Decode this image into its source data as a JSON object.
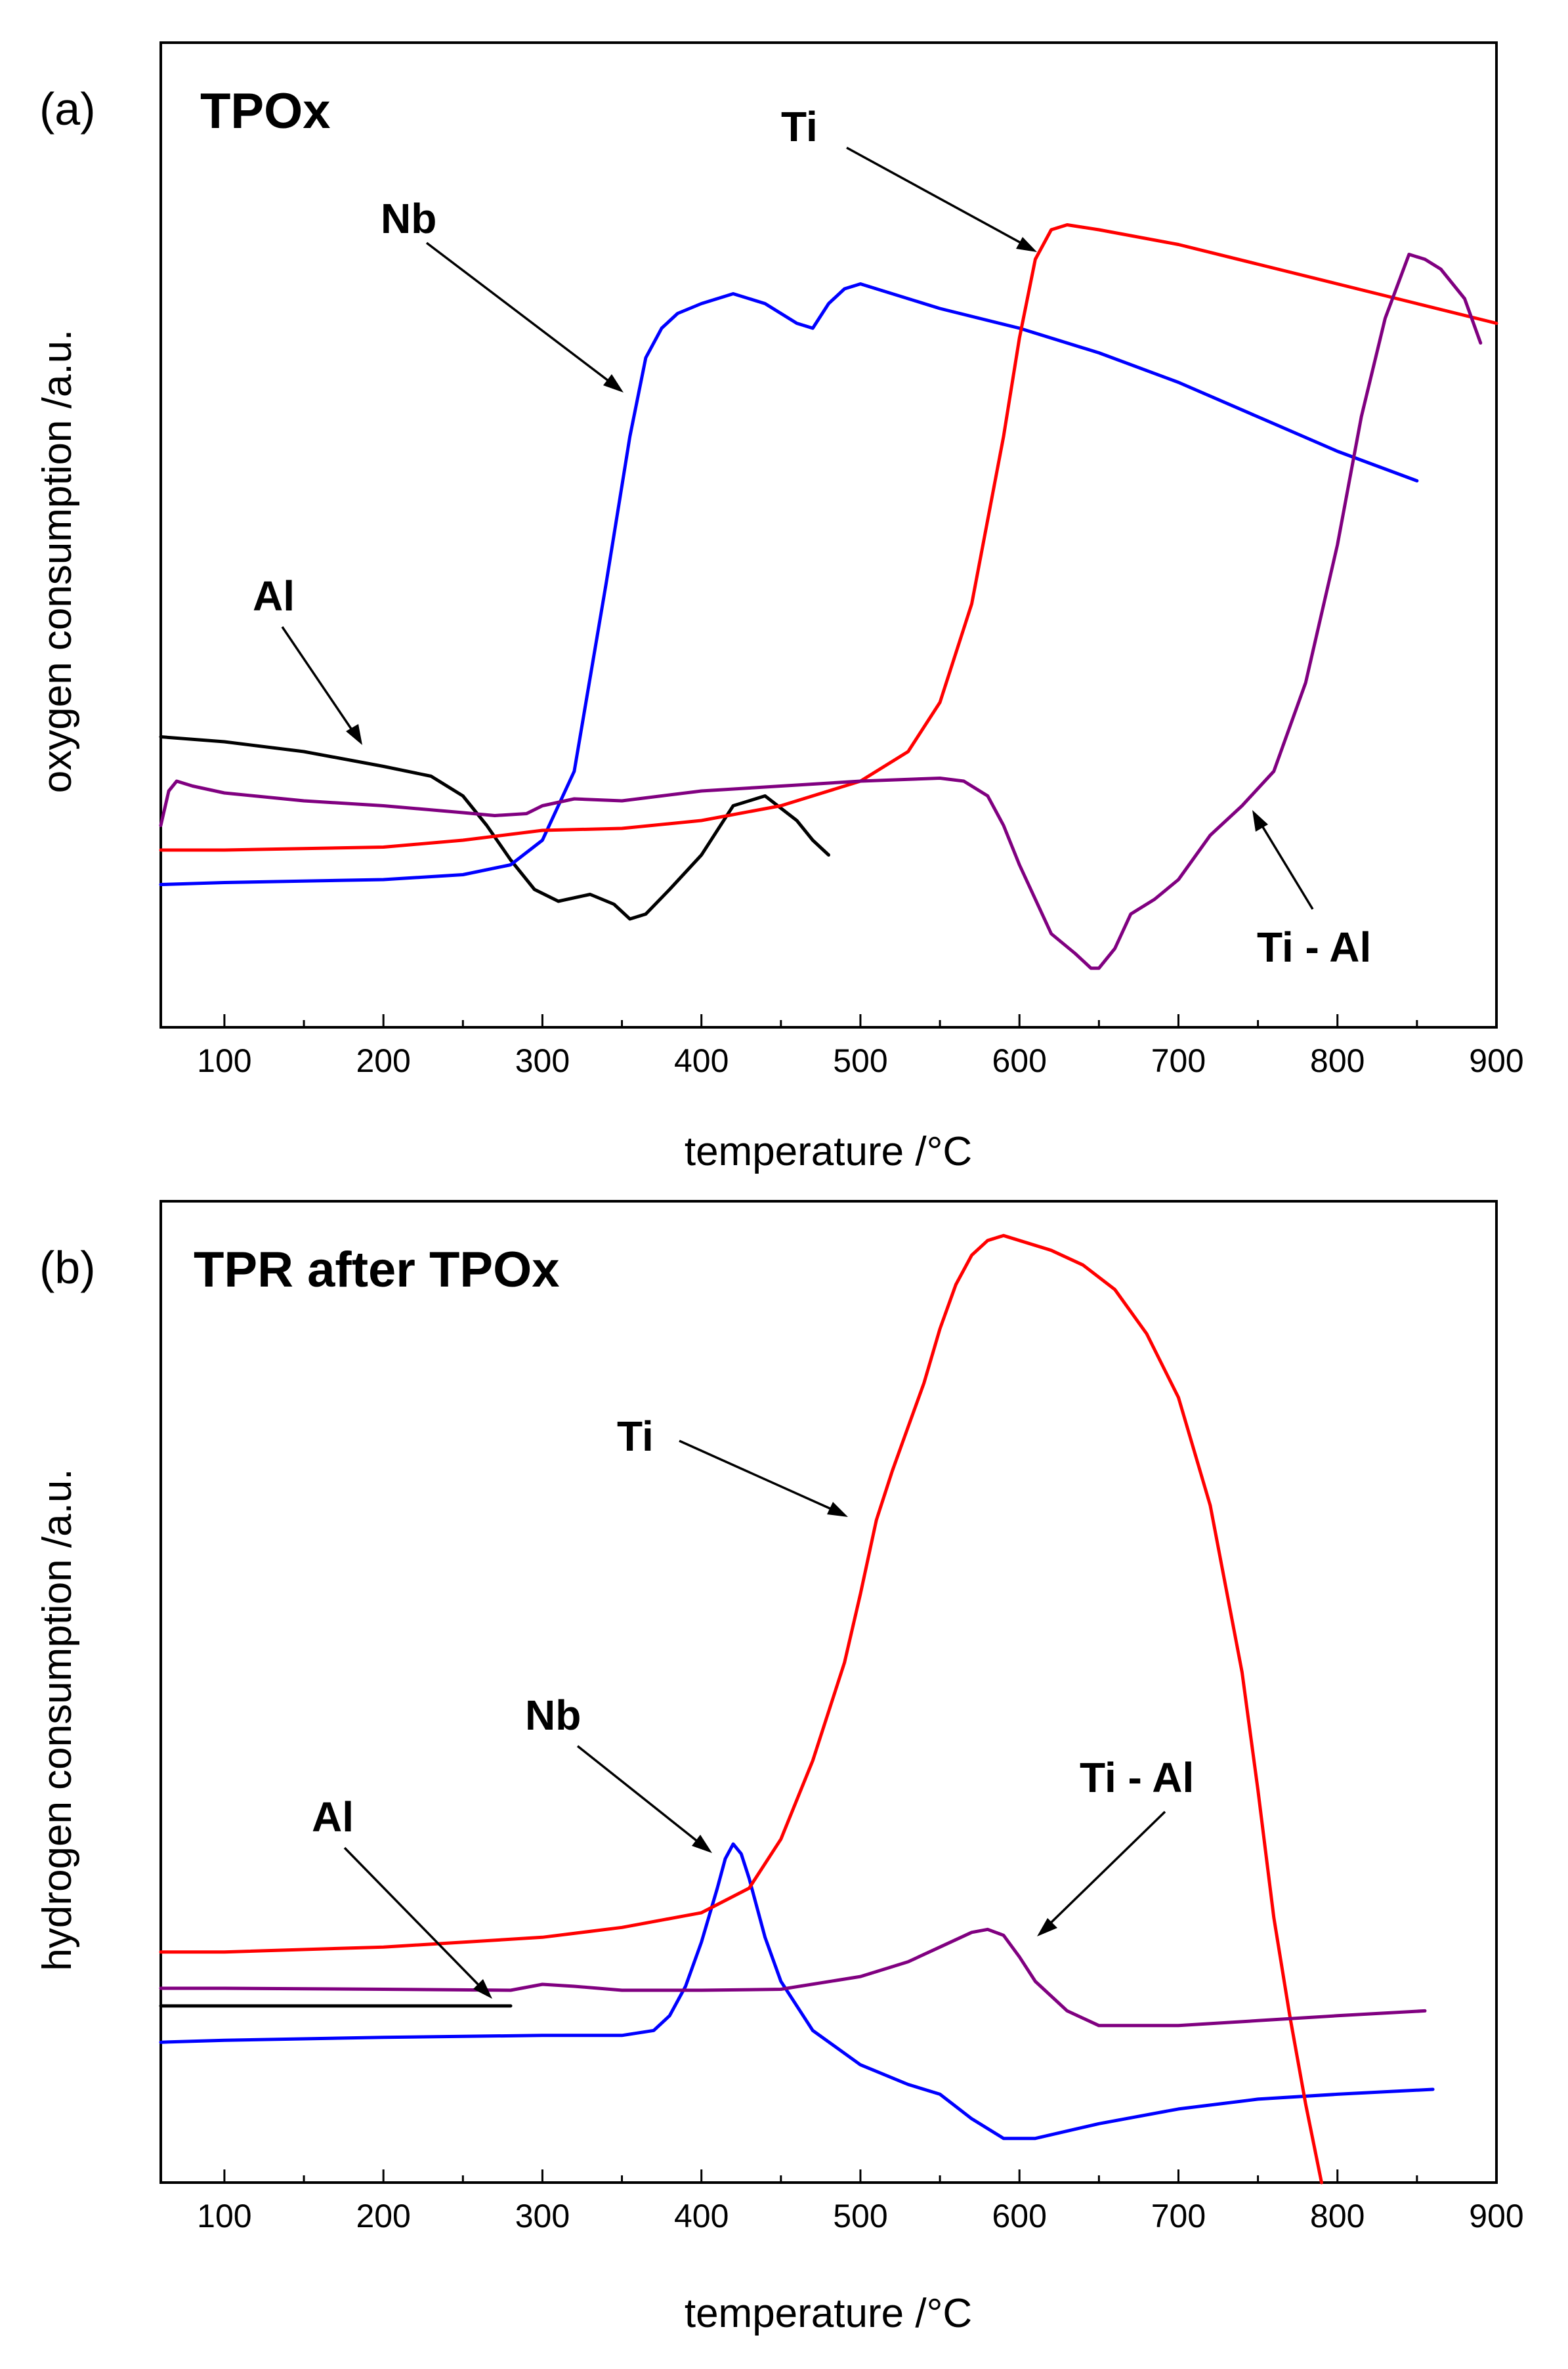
{
  "chart_data": [
    {
      "type": "line",
      "panel_tag": "(a)",
      "title": "TPOx",
      "xlabel": "temperature /°C",
      "ylabel": "oxygen consumption /a.u.",
      "xlim": [
        60,
        900
      ],
      "ylim": [
        0,
        100
      ],
      "xticks": [
        100,
        200,
        300,
        400,
        500,
        600,
        700,
        800,
        900
      ],
      "series": [
        {
          "name": "Al",
          "color": "#000000",
          "x": [
            60,
            100,
            150,
            200,
            230,
            250,
            265,
            280,
            295,
            310,
            330,
            345,
            355,
            365,
            380,
            400,
            420,
            440,
            460,
            470,
            480
          ],
          "y": [
            29.5,
            29.0,
            28.0,
            26.5,
            25.5,
            23.5,
            20.5,
            17.0,
            14.0,
            12.8,
            13.5,
            12.5,
            11.0,
            11.5,
            14.0,
            17.5,
            22.5,
            23.5,
            21.0,
            19.0,
            17.5
          ]
        },
        {
          "name": "Nb",
          "color": "#0000ff",
          "x": [
            60,
            100,
            200,
            250,
            280,
            300,
            320,
            340,
            355,
            365,
            375,
            385,
            400,
            420,
            440,
            460,
            470,
            480,
            490,
            500,
            550,
            600,
            650,
            700,
            750,
            800,
            850
          ],
          "y": [
            14.5,
            14.7,
            15.0,
            15.5,
            16.5,
            19.0,
            26.0,
            45.0,
            60.0,
            68.0,
            71.0,
            72.5,
            73.5,
            74.5,
            73.5,
            71.5,
            71.0,
            73.5,
            75.0,
            75.5,
            73.0,
            71.0,
            68.5,
            65.5,
            62.0,
            58.5,
            55.5
          ]
        },
        {
          "name": "Ti",
          "color": "#ff0000",
          "x": [
            60,
            100,
            200,
            250,
            300,
            350,
            400,
            450,
            500,
            530,
            550,
            570,
            590,
            600,
            610,
            620,
            630,
            650,
            700,
            750,
            800,
            850,
            900
          ],
          "y": [
            18.0,
            18.0,
            18.3,
            19.0,
            20.0,
            20.2,
            21.0,
            22.5,
            25.0,
            28.0,
            33.0,
            43.0,
            60.0,
            70.0,
            78.0,
            81.0,
            81.5,
            81.0,
            79.5,
            77.5,
            75.5,
            73.5,
            71.5
          ]
        },
        {
          "name": "Ti - Al",
          "color": "#800080",
          "x": [
            60,
            65,
            70,
            80,
            100,
            150,
            200,
            250,
            270,
            290,
            300,
            320,
            350,
            400,
            450,
            500,
            550,
            565,
            580,
            590,
            600,
            620,
            635,
            645,
            650,
            660,
            670,
            685,
            700,
            720,
            740,
            760,
            780,
            800,
            815,
            830,
            845,
            855,
            865,
            880,
            890
          ],
          "y": [
            20.5,
            24.0,
            25.0,
            24.5,
            23.8,
            23.0,
            22.5,
            21.8,
            21.5,
            21.7,
            22.5,
            23.2,
            23.0,
            24.0,
            24.5,
            25.0,
            25.3,
            25.0,
            23.5,
            20.5,
            16.5,
            9.5,
            7.5,
            6.0,
            6.0,
            8.0,
            11.5,
            13.0,
            15.0,
            19.5,
            22.5,
            26.0,
            35.0,
            49.0,
            62.0,
            72.0,
            78.5,
            78.0,
            77.0,
            74.0,
            69.5
          ]
        }
      ],
      "annotations": [
        "Ti",
        "Nb",
        "Al",
        "Ti - Al"
      ]
    },
    {
      "type": "line",
      "panel_tag": "(b)",
      "title": "TPR after TPOx",
      "xlabel": "temperature /°C",
      "ylabel": "hydrogen consumption /a.u.",
      "xlim": [
        60,
        900
      ],
      "ylim": [
        0,
        100
      ],
      "xticks": [
        100,
        200,
        300,
        400,
        500,
        600,
        700,
        800,
        900
      ],
      "series": [
        {
          "name": "Al",
          "color": "#000000",
          "x": [
            60,
            100,
            200,
            250,
            280
          ],
          "y": [
            18.0,
            18.0,
            18.0,
            18.0,
            18.0
          ]
        },
        {
          "name": "Nb",
          "color": "#0000ff",
          "x": [
            60,
            100,
            200,
            300,
            350,
            370,
            380,
            390,
            400,
            410,
            415,
            420,
            425,
            430,
            440,
            450,
            470,
            500,
            530,
            550,
            570,
            590,
            610,
            650,
            700,
            750,
            800,
            860
          ],
          "y": [
            14.3,
            14.5,
            14.8,
            15.0,
            15.0,
            15.5,
            17.0,
            20.0,
            24.5,
            30.0,
            33.0,
            34.5,
            33.5,
            31.0,
            25.0,
            20.5,
            15.5,
            12.0,
            10.0,
            9.0,
            6.5,
            4.5,
            4.5,
            6.0,
            7.5,
            8.5,
            9.0,
            9.5
          ]
        },
        {
          "name": "Ti",
          "color": "#ff0000",
          "x": [
            60,
            100,
            200,
            300,
            350,
            400,
            430,
            450,
            470,
            490,
            500,
            510,
            520,
            530,
            540,
            550,
            560,
            570,
            580,
            590,
            600,
            620,
            640,
            660,
            680,
            700,
            720,
            740,
            750,
            760,
            770,
            780,
            790
          ],
          "y": [
            23.5,
            23.5,
            24.0,
            25.0,
            26.0,
            27.5,
            30.0,
            35.0,
            43.0,
            53.0,
            60.0,
            67.5,
            72.5,
            77.0,
            81.5,
            87.0,
            91.5,
            94.5,
            96.0,
            96.5,
            96.0,
            95.0,
            93.5,
            91.0,
            86.5,
            80.0,
            69.0,
            52.0,
            40.0,
            27.0,
            17.0,
            8.0,
            0
          ]
        },
        {
          "name": "Ti - Al",
          "color": "#800080",
          "x": [
            60,
            100,
            200,
            280,
            300,
            320,
            350,
            400,
            450,
            500,
            530,
            550,
            570,
            580,
            590,
            600,
            610,
            630,
            650,
            700,
            750,
            800,
            855
          ],
          "y": [
            19.8,
            19.8,
            19.7,
            19.6,
            20.2,
            20.0,
            19.6,
            19.6,
            19.7,
            21.0,
            22.5,
            24.0,
            25.5,
            25.8,
            25.2,
            23.0,
            20.5,
            17.5,
            16.0,
            16.0,
            16.5,
            17.0,
            17.5
          ]
        }
      ],
      "annotations": [
        "Ti",
        "Nb",
        "Al",
        "Ti - Al"
      ]
    }
  ]
}
